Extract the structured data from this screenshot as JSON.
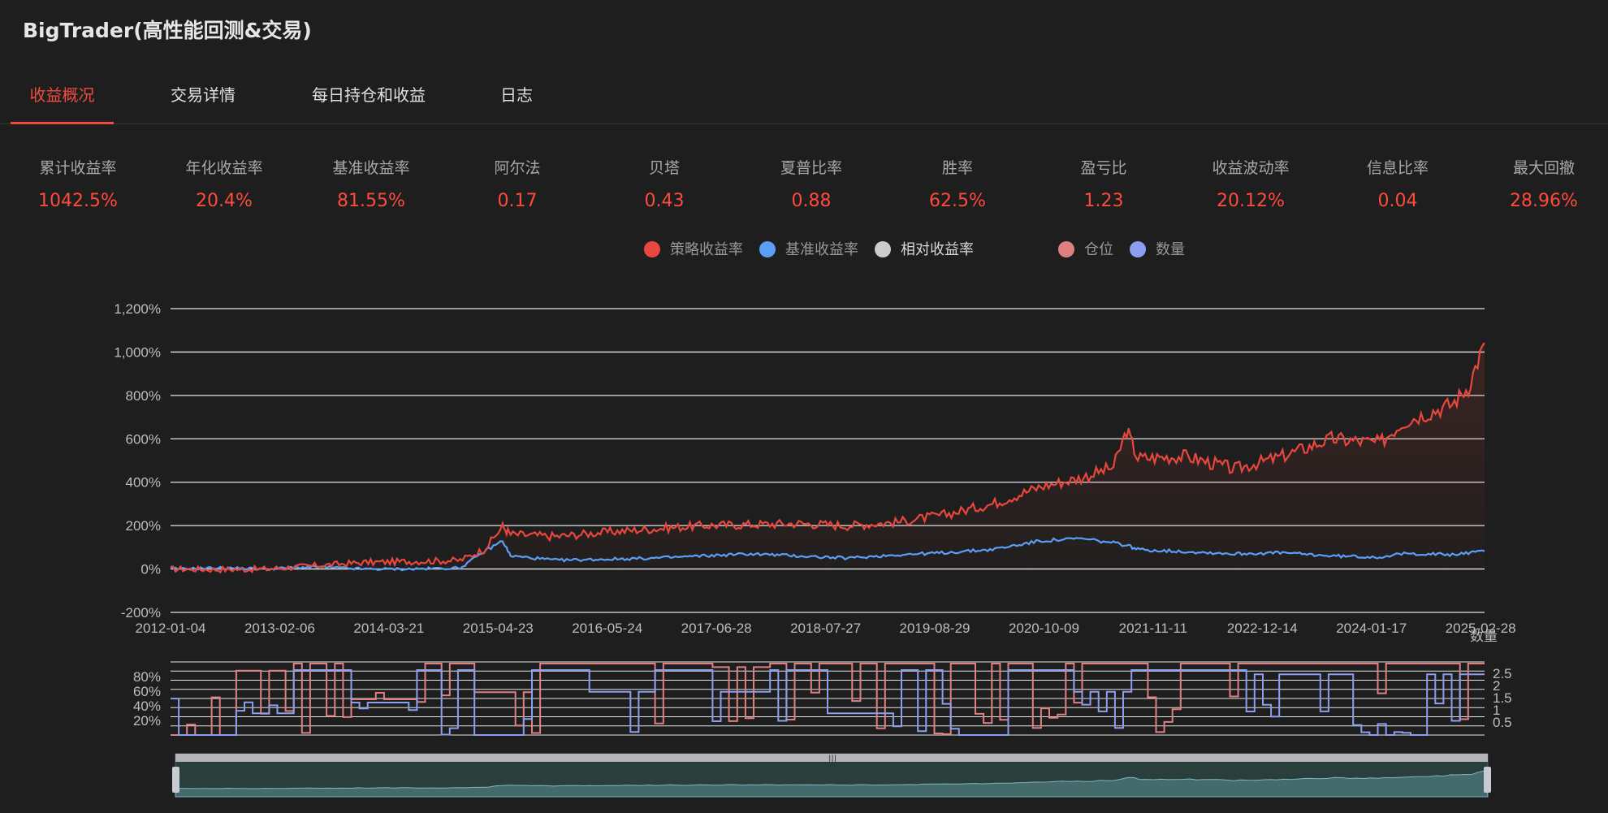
{
  "app": {
    "title": "BigTrader(高性能回测&交易)"
  },
  "tabs": [
    {
      "label": "收益概况",
      "active": true
    },
    {
      "label": "交易详情",
      "active": false
    },
    {
      "label": "每日持仓和收益",
      "active": false
    },
    {
      "label": "日志",
      "active": false
    }
  ],
  "metrics": [
    {
      "label": "累计收益率",
      "value": "1042.5%"
    },
    {
      "label": "年化收益率",
      "value": "20.4%"
    },
    {
      "label": "基准收益率",
      "value": "81.55%"
    },
    {
      "label": "阿尔法",
      "value": "0.17"
    },
    {
      "label": "贝塔",
      "value": "0.43"
    },
    {
      "label": "夏普比率",
      "value": "0.88"
    },
    {
      "label": "胜率",
      "value": "62.5%"
    },
    {
      "label": "盈亏比",
      "value": "1.23"
    },
    {
      "label": "收益波动率",
      "value": "20.12%"
    },
    {
      "label": "信息比率",
      "value": "0.04"
    },
    {
      "label": "最大回撤",
      "value": "28.96%"
    }
  ],
  "legend": [
    {
      "label": "策略收益率",
      "color": "#e8473d"
    },
    {
      "label": "基准收益率",
      "color": "#5b9ef5"
    },
    {
      "label": "相对收益率",
      "color": "#cccccc"
    },
    {
      "label": "仓位",
      "color": "#e07f80"
    },
    {
      "label": "数量",
      "color": "#8c9ef0"
    }
  ],
  "chart_data": [
    {
      "type": "line",
      "title": "",
      "xlabel": "",
      "ylabel": "",
      "x_tick_labels": [
        "2012-01-04",
        "2013-02-06",
        "2014-03-21",
        "2015-04-23",
        "2016-05-24",
        "2017-06-28",
        "2018-07-27",
        "2019-08-29",
        "2020-10-09",
        "2021-11-11",
        "2022-12-14",
        "2024-01-17",
        "2025-02-28"
      ],
      "y_tick_labels": [
        "-200%",
        "0%",
        "200%",
        "400%",
        "600%",
        "800%",
        "1,000%",
        "1,200%"
      ],
      "ylim": [
        -200,
        1200
      ],
      "grid": true,
      "x": [
        "2012-01-04",
        "2012-07-01",
        "2013-01-01",
        "2013-07-01",
        "2014-01-01",
        "2014-07-01",
        "2015-01-01",
        "2015-04-01",
        "2015-06-10",
        "2015-07-10",
        "2016-01-01",
        "2016-07-01",
        "2017-01-01",
        "2017-07-01",
        "2018-01-01",
        "2018-07-01",
        "2019-01-01",
        "2019-07-01",
        "2020-01-01",
        "2020-07-01",
        "2020-10-01",
        "2021-01-01",
        "2021-06-01",
        "2021-10-01",
        "2021-11-20",
        "2022-01-01",
        "2022-07-01",
        "2023-01-01",
        "2023-07-01",
        "2024-01-01",
        "2024-07-01",
        "2024-10-01",
        "2025-01-01",
        "2025-04-01",
        "2025-06-01",
        "2025-08-01"
      ],
      "series": [
        {
          "name": "策略收益率",
          "color": "#e8473d",
          "values": [
            0,
            -2,
            0,
            15,
            30,
            35,
            40,
            90,
            195,
            160,
            150,
            170,
            185,
            200,
            205,
            210,
            200,
            215,
            250,
            300,
            340,
            380,
            420,
            470,
            640,
            510,
            520,
            460,
            520,
            600,
            580,
            680,
            720,
            760,
            840,
            1042.5
          ]
        },
        {
          "name": "基准收益率",
          "color": "#5b9ef5",
          "values": [
            0,
            5,
            0,
            10,
            0,
            0,
            5,
            80,
            130,
            60,
            40,
            45,
            50,
            60,
            70,
            60,
            50,
            65,
            75,
            90,
            110,
            130,
            140,
            120,
            110,
            90,
            80,
            70,
            75,
            60,
            55,
            70,
            70,
            65,
            75,
            81.55
          ]
        }
      ]
    },
    {
      "type": "line",
      "title": "",
      "y_tick_labels": [
        "20%",
        "40%",
        "60%",
        "80%"
      ],
      "y2_tick_labels": [
        "0.5",
        "1",
        "1.5",
        "2",
        "2.5"
      ],
      "y2_axis_name": "数量",
      "series": [
        {
          "name": "仓位",
          "color": "#e07f80",
          "values": [
            0,
            90,
            100,
            50,
            100,
            60,
            100,
            100,
            100,
            95,
            100,
            100,
            100,
            100,
            100,
            100,
            100,
            100,
            100,
            100,
            100,
            100
          ]
        },
        {
          "name": "数量",
          "color": "#8c9ef0",
          "values": [
            0,
            1,
            3,
            1.5,
            3,
            0,
            3,
            2,
            3,
            2,
            3,
            1,
            3,
            0,
            3,
            2,
            3,
            3,
            2.8,
            2.8,
            0,
            2.8
          ]
        }
      ]
    }
  ]
}
